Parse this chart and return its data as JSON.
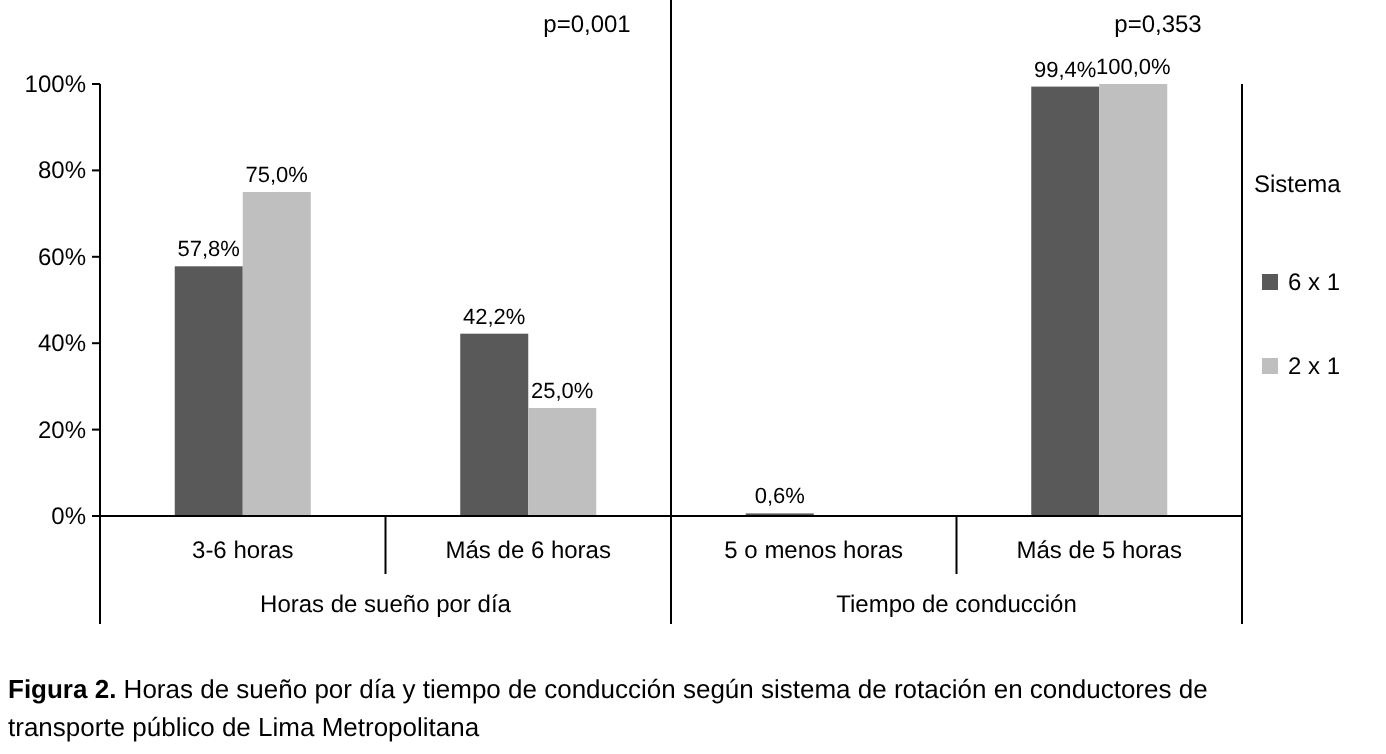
{
  "chart_data": {
    "type": "bar",
    "categories": [
      "3-6 horas",
      "Más de 6 horas",
      "5 o menos horas",
      "Más de 5 horas"
    ],
    "series": [
      {
        "name": "6 x 1",
        "color": "#595959",
        "values": [
          57.8,
          42.2,
          0.6,
          99.4
        ],
        "value_labels": [
          "57,8%",
          "42,2%",
          "0,6%",
          "99,4%"
        ]
      },
      {
        "name": "2 x 1",
        "color": "#bfbfbf",
        "values": [
          75.0,
          25.0,
          0,
          100.0
        ],
        "value_labels": [
          "75,0%",
          "25,0%",
          null,
          "100,0%"
        ]
      }
    ],
    "ylim": [
      0,
      100
    ],
    "yticks": [
      {
        "value": 0,
        "label": "0%"
      },
      {
        "value": 20,
        "label": "20%"
      },
      {
        "value": 40,
        "label": "40%"
      },
      {
        "value": 60,
        "label": "60%"
      },
      {
        "value": 80,
        "label": "80%"
      },
      {
        "value": 100,
        "label": "100%"
      }
    ],
    "legend": "right",
    "legend_title": "Sistema",
    "annotations": [
      "p=0,001",
      "p=0,353",
      "Horas de sueño por día",
      "Tiempo de conducción",
      "Figura 2. Horas de sueño por día y tiempo de conducción según sistema de rotación en conductores de transporte público de Lima Metropolitana"
    ]
  }
}
